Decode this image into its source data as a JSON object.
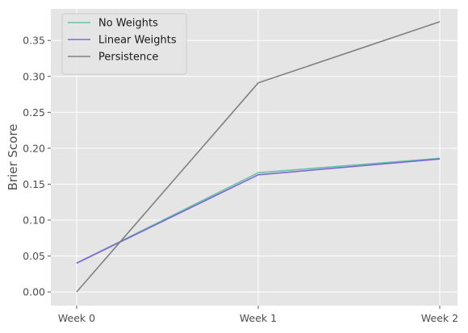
{
  "chart_data": {
    "type": "line",
    "title": "",
    "xlabel": "",
    "ylabel": "Brier Score",
    "categories": [
      "Week 0",
      "Week 1",
      "Week 2"
    ],
    "ylim": [
      -0.019,
      0.394
    ],
    "yticks": [
      0.0,
      0.05,
      0.1,
      0.15,
      0.2,
      0.25,
      0.3,
      0.35
    ],
    "ytick_labels": [
      "0.00",
      "0.05",
      "0.10",
      "0.15",
      "0.20",
      "0.25",
      "0.30",
      "0.35"
    ],
    "grid": true,
    "legend_position": "top-left",
    "background_color": "#e5e5e5",
    "series": [
      {
        "name": "No Weights",
        "values": [
          0.04,
          0.166,
          0.186
        ],
        "color": "#66c2a5"
      },
      {
        "name": "Linear Weights",
        "values": [
          0.04,
          0.163,
          0.185
        ],
        "color": "#7b68d8"
      },
      {
        "name": "Persistence",
        "values": [
          0.0,
          0.291,
          0.376
        ],
        "color": "#808080"
      }
    ]
  }
}
